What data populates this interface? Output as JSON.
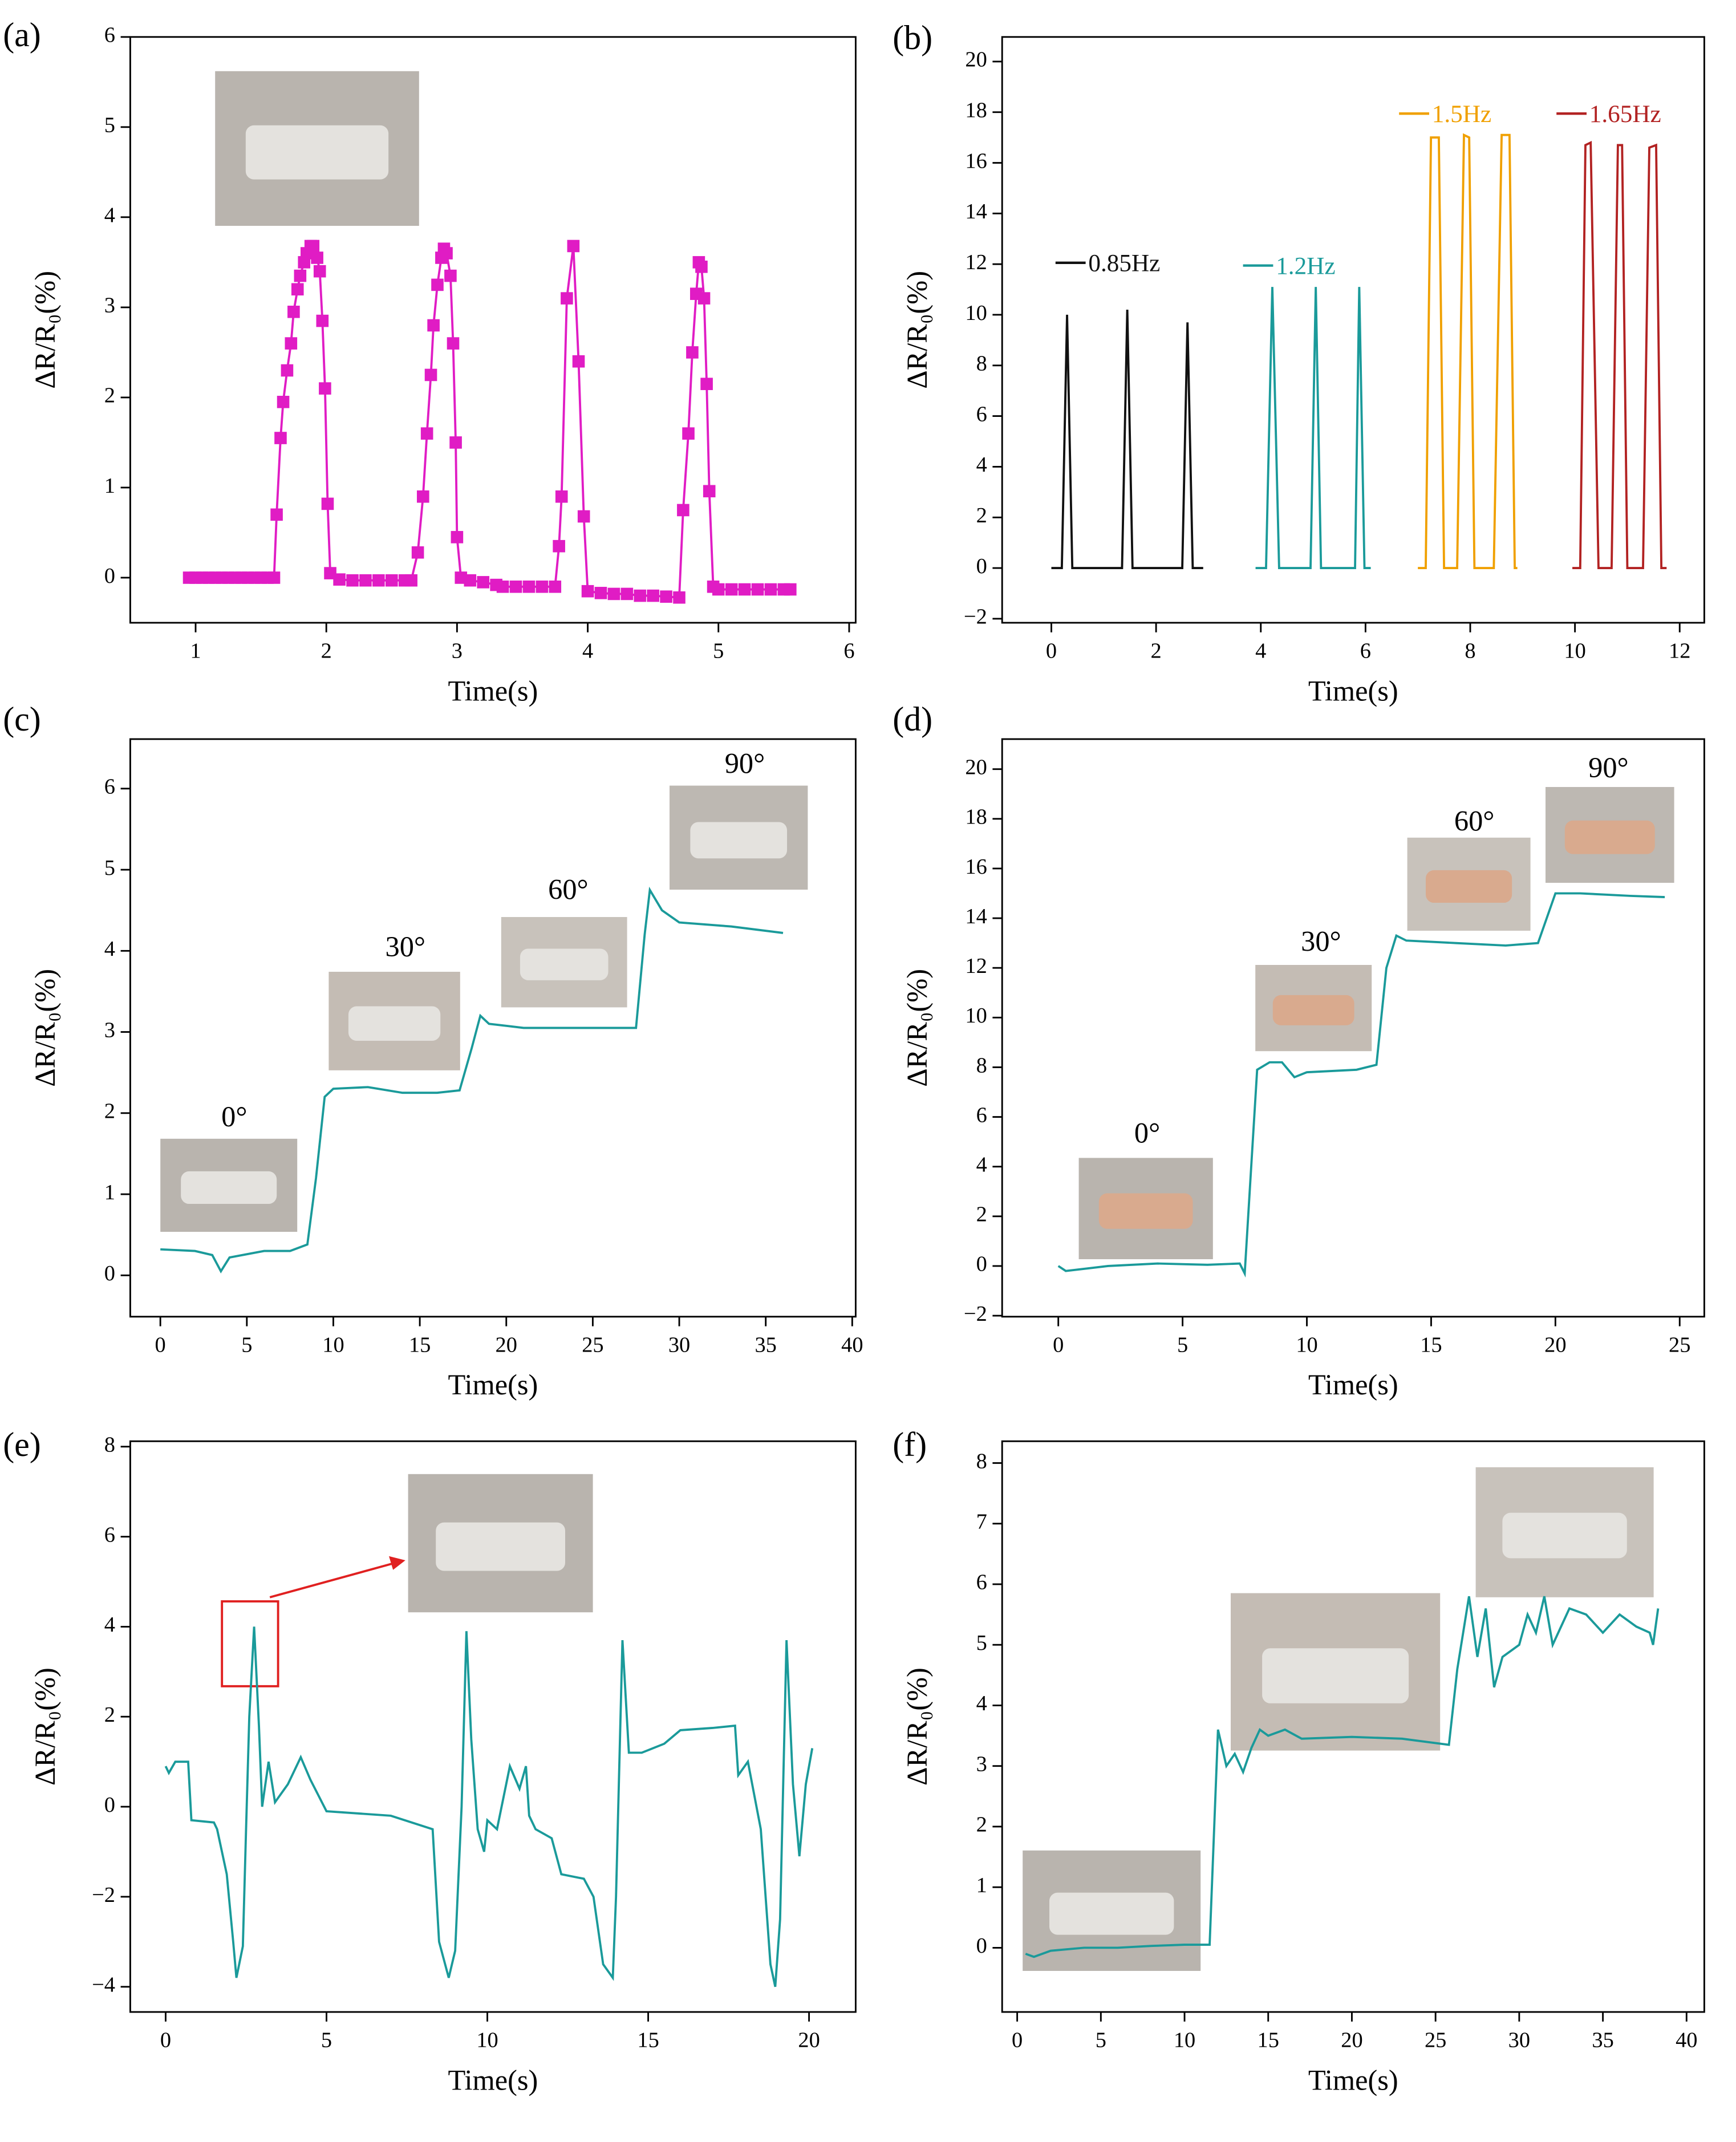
{
  "chart_data": [
    {
      "panel": "(a)",
      "type": "line",
      "xlabel": "Time(s)",
      "ylabel": "ΔR/R₀(%)",
      "xlim": [
        0.5,
        6.05
      ],
      "ylim": [
        -0.5,
        6
      ],
      "xticks": [
        1,
        2,
        3,
        4,
        5,
        6
      ],
      "yticks": [
        0,
        1,
        2,
        3,
        4,
        5,
        6
      ],
      "series": [
        {
          "color": "#e01cc4",
          "marker": "square",
          "x": [
            0.95,
            1.0,
            1.05,
            1.1,
            1.15,
            1.2,
            1.25,
            1.3,
            1.35,
            1.4,
            1.45,
            1.5,
            1.55,
            1.6,
            1.62,
            1.65,
            1.67,
            1.7,
            1.73,
            1.75,
            1.78,
            1.8,
            1.83,
            1.85,
            1.88,
            1.9,
            1.93,
            1.95,
            1.97,
            1.99,
            2.01,
            2.03,
            2.1,
            2.2,
            2.3,
            2.4,
            2.5,
            2.6,
            2.65,
            2.7,
            2.74,
            2.77,
            2.8,
            2.82,
            2.85,
            2.88,
            2.9,
            2.92,
            2.95,
            2.97,
            2.99,
            3.0,
            3.03,
            3.1,
            3.2,
            3.3,
            3.35,
            3.45,
            3.55,
            3.65,
            3.75,
            3.78,
            3.8,
            3.84,
            3.89,
            3.93,
            3.97,
            4.0,
            4.1,
            4.2,
            4.3,
            4.4,
            4.5,
            4.6,
            4.7,
            4.73,
            4.77,
            4.8,
            4.83,
            4.85,
            4.87,
            4.89,
            4.91,
            4.93,
            4.96,
            5.0,
            5.1,
            5.2,
            5.3,
            5.4,
            5.5,
            5.55
          ],
          "values": [
            0,
            0,
            0,
            0,
            0,
            0,
            0,
            0,
            0,
            0,
            0,
            0,
            0,
            0,
            0.7,
            1.55,
            1.95,
            2.3,
            2.6,
            2.95,
            3.2,
            3.35,
            3.5,
            3.6,
            3.68,
            3.68,
            3.55,
            3.4,
            2.85,
            2.1,
            0.82,
            0.05,
            -0.02,
            -0.03,
            -0.03,
            -0.03,
            -0.03,
            -0.03,
            -0.03,
            0.28,
            0.9,
            1.6,
            2.25,
            2.8,
            3.25,
            3.55,
            3.65,
            3.6,
            3.35,
            2.6,
            1.5,
            0.45,
            0,
            -0.03,
            -0.05,
            -0.08,
            -0.1,
            -0.1,
            -0.1,
            -0.1,
            -0.1,
            0.35,
            0.9,
            3.1,
            3.68,
            2.4,
            0.68,
            -0.15,
            -0.17,
            -0.18,
            -0.18,
            -0.2,
            -0.2,
            -0.21,
            -0.22,
            0.75,
            1.6,
            2.5,
            3.15,
            3.5,
            3.45,
            3.1,
            2.15,
            0.96,
            -0.1,
            -0.13,
            -0.13,
            -0.13,
            -0.13,
            -0.13,
            -0.13,
            -0.13
          ]
        }
      ]
    },
    {
      "panel": "(b)",
      "type": "line",
      "xlabel": "Time(s)",
      "ylabel": "ΔR/R₀(%)",
      "xlim": [
        -0.94,
        12.47
      ],
      "ylim": [
        -2.16,
        20.97
      ],
      "xticks": [
        0,
        2,
        4,
        6,
        8,
        10,
        12
      ],
      "yticks": [
        {
          "value": -2,
          "label": "−2"
        },
        0,
        2,
        4,
        6,
        8,
        10,
        12,
        14,
        16,
        18,
        20
      ],
      "series": [
        {
          "name": "0.85Hz",
          "color": "#111111",
          "x": [
            0,
            0.2,
            0.3,
            0.4,
            1.35,
            1.45,
            1.55,
            2.5,
            2.6,
            2.7,
            2.9
          ],
          "values": [
            0,
            0,
            10,
            0,
            0,
            10.2,
            0,
            0,
            9.7,
            0,
            0
          ]
        },
        {
          "name": "1.2Hz",
          "color": "#1a9a9a",
          "x": [
            3.9,
            4.1,
            4.22,
            4.35,
            4.95,
            5.05,
            5.15,
            5.8,
            5.88,
            5.98,
            6.1
          ],
          "values": [
            0,
            0,
            11.1,
            0,
            0,
            11.1,
            0,
            0,
            11.1,
            0,
            0
          ]
        },
        {
          "name": "1.5Hz",
          "color": "#f0a000",
          "x": [
            7.0,
            7.15,
            7.25,
            7.4,
            7.5,
            7.75,
            7.88,
            7.98,
            8.08,
            8.45,
            8.6,
            8.75,
            8.85,
            8.9
          ],
          "values": [
            0,
            0,
            17,
            17,
            0,
            0,
            17.1,
            17,
            0,
            0,
            17.1,
            17.1,
            0,
            0
          ]
        },
        {
          "name": "1.65Hz",
          "color": "#b22222",
          "x": [
            9.95,
            10.1,
            10.2,
            10.3,
            10.45,
            10.7,
            10.82,
            10.9,
            11.0,
            11.3,
            11.42,
            11.55,
            11.65,
            11.75
          ],
          "values": [
            0,
            0,
            16.7,
            16.8,
            0,
            0,
            16.7,
            16.7,
            0,
            0,
            16.6,
            16.7,
            0,
            0
          ]
        }
      ]
    },
    {
      "panel": "(c)",
      "type": "line",
      "xlabel": "Time(s)",
      "ylabel": "ΔR/R₀(%)",
      "xlim": [
        -1.74,
        40.2
      ],
      "ylim": [
        -0.51,
        6.61
      ],
      "xticks": [
        0,
        5,
        10,
        15,
        20,
        25,
        30,
        35,
        40
      ],
      "yticks": [
        0,
        1,
        2,
        3,
        4,
        5,
        6
      ],
      "annotations": [
        "0°",
        "30°",
        "60°",
        "90°"
      ],
      "series": [
        {
          "color": "#1a9a9a",
          "x": [
            0,
            2,
            3,
            3.5,
            4,
            6,
            7.5,
            8.5,
            9,
            9.5,
            10,
            12,
            14,
            16,
            17.3,
            18,
            18.5,
            19,
            21,
            24,
            27.5,
            28,
            28.3,
            29,
            30,
            33,
            36
          ],
          "values": [
            0.32,
            0.3,
            0.25,
            0.05,
            0.22,
            0.3,
            0.3,
            0.38,
            1.2,
            2.2,
            2.3,
            2.32,
            2.25,
            2.25,
            2.28,
            2.8,
            3.2,
            3.1,
            3.05,
            3.05,
            3.05,
            4.2,
            4.75,
            4.5,
            4.35,
            4.3,
            4.22
          ]
        }
      ]
    },
    {
      "panel": "(d)",
      "type": "line",
      "xlabel": "Time(s)",
      "ylabel": "ΔR/R₀(%)",
      "xlim": [
        -2.26,
        25.99
      ],
      "ylim": [
        -2.04,
        21.21
      ],
      "xticks": [
        0,
        5,
        10,
        15,
        20,
        25
      ],
      "yticks": [
        {
          "value": -2,
          "label": "−2"
        },
        0,
        2,
        4,
        6,
        8,
        10,
        12,
        14,
        16,
        18,
        20
      ],
      "annotations": [
        "0°",
        "30°",
        "60°",
        "90°"
      ],
      "series": [
        {
          "color": "#1a9a9a",
          "x": [
            0,
            0.3,
            2,
            4,
            6,
            7.3,
            7.5,
            7.7,
            8,
            8.5,
            9,
            9.5,
            10,
            12,
            12.8,
            13.2,
            13.6,
            14,
            16,
            18,
            19.3,
            20,
            21,
            23,
            24.4
          ],
          "values": [
            0,
            -0.2,
            0,
            0.1,
            0.05,
            0.1,
            -0.3,
            3,
            7.9,
            8.2,
            8.2,
            7.6,
            7.8,
            7.9,
            8.1,
            12,
            13.3,
            13.1,
            13,
            12.9,
            13,
            15,
            15,
            14.9,
            14.85
          ]
        }
      ]
    },
    {
      "panel": "(e)",
      "type": "line",
      "xlabel": "Time(s)",
      "ylabel": "ΔR/R₀(%)",
      "xlim": [
        -1.1,
        21.45
      ],
      "ylim": [
        -4.56,
        8.12
      ],
      "xticks": [
        0,
        5,
        10,
        15,
        20
      ],
      "yticks": [
        {
          "value": -4,
          "label": "−4"
        },
        {
          "value": -2,
          "label": "−2"
        },
        0,
        2,
        4,
        6,
        8
      ],
      "series": [
        {
          "color": "#1a9a9a",
          "x": [
            0,
            0.1,
            0.3,
            0.7,
            0.8,
            1.5,
            1.6,
            1.9,
            2.1,
            2.2,
            2.4,
            2.5,
            2.6,
            2.75,
            2.9,
            3.0,
            3.2,
            3.4,
            3.8,
            4.2,
            4.5,
            5,
            7,
            8.3,
            8.5,
            8.8,
            9.0,
            9.2,
            9.35,
            9.5,
            9.7,
            9.9,
            10,
            10.3,
            10.7,
            11,
            11.2,
            11.3,
            11.5,
            12,
            12.3,
            13,
            13.3,
            13.6,
            13.9,
            14.0,
            14.2,
            14.4,
            14.8,
            15.5,
            16,
            17,
            17.7,
            17.8,
            18.1,
            18.5,
            18.8,
            18.95,
            19.1,
            19.3,
            19.5,
            19.7,
            19.9,
            20.1
          ],
          "values": [
            0.9,
            0.75,
            1.0,
            1.0,
            -0.3,
            -0.35,
            -0.5,
            -1.5,
            -3.0,
            -3.8,
            -3.1,
            -0.5,
            2.0,
            4.0,
            1.8,
            0,
            1.0,
            0.1,
            0.5,
            1.1,
            0.6,
            -0.1,
            -0.2,
            -0.5,
            -3.0,
            -3.8,
            -3.2,
            0,
            3.9,
            1.5,
            -0.5,
            -1.0,
            -0.3,
            -0.5,
            0.9,
            0.4,
            0.9,
            -0.2,
            -0.5,
            -0.7,
            -1.5,
            -1.6,
            -2,
            -3.5,
            -3.8,
            -2,
            3.7,
            1.2,
            1.2,
            1.4,
            1.7,
            1.75,
            1.8,
            0.7,
            1.0,
            -0.5,
            -3.5,
            -4.0,
            -2.5,
            3.7,
            0.5,
            -1.1,
            0.5,
            1.3
          ]
        }
      ]
    },
    {
      "panel": "(f)",
      "type": "line",
      "xlabel": "Time(s)",
      "ylabel": "ΔR/R₀(%)",
      "xlim": [
        -0.9,
        41.06
      ],
      "ylim": [
        -1.06,
        8.36
      ],
      "xticks": [
        0,
        5,
        10,
        15,
        20,
        25,
        30,
        35,
        40
      ],
      "yticks": [
        0,
        1,
        2,
        3,
        4,
        5,
        6,
        7,
        8
      ],
      "series": [
        {
          "color": "#1a9a9a",
          "x": [
            0.5,
            1,
            2,
            4,
            6,
            8,
            10,
            11.5,
            12,
            12.5,
            13,
            13.5,
            14,
            14.5,
            15,
            16,
            17,
            20,
            23,
            25.8,
            26.3,
            27,
            27.5,
            28,
            28.5,
            29,
            30,
            30.5,
            31,
            31.5,
            32,
            33,
            34,
            35,
            36,
            37,
            37.8,
            38,
            38.3
          ],
          "values": [
            -0.1,
            -0.15,
            -0.05,
            0,
            0,
            0.03,
            0.05,
            0.05,
            3.6,
            3.0,
            3.2,
            2.9,
            3.3,
            3.6,
            3.5,
            3.6,
            3.45,
            3.48,
            3.45,
            3.35,
            4.6,
            5.8,
            4.8,
            5.6,
            4.3,
            4.8,
            5.0,
            5.5,
            5.2,
            5.8,
            5.0,
            5.6,
            5.5,
            5.2,
            5.5,
            5.3,
            5.2,
            5.0,
            5.6
          ]
        }
      ]
    }
  ]
}
